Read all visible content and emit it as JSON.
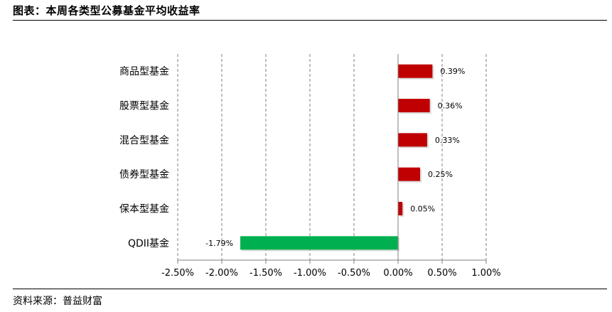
{
  "header": {
    "title": "图表：本周各类型公募基金平均收益率"
  },
  "footer": {
    "source": "资料来源：普益财富"
  },
  "chart_data": {
    "type": "bar",
    "orientation": "horizontal",
    "categories": [
      "商品型基金",
      "股票型基金",
      "混合型基金",
      "债券型基金",
      "保本型基金",
      "QDII基金"
    ],
    "values": [
      0.39,
      0.36,
      0.33,
      0.25,
      0.05,
      -1.79
    ],
    "data_labels": [
      "0.39%",
      "0.36%",
      "0.33%",
      "0.25%",
      "0.05%",
      "-1.79%"
    ],
    "xlim": [
      -2.5,
      1.0
    ],
    "xticks": [
      -2.5,
      -2.0,
      -1.5,
      -1.0,
      -0.5,
      0.0,
      0.5,
      1.0
    ],
    "xtick_labels": [
      "-2.50%",
      "-2.00%",
      "-1.50%",
      "-1.00%",
      "-0.50%",
      "0.00%",
      "0.50%",
      "1.00%"
    ],
    "grid": "vertical dashed",
    "colors": {
      "positive": "#c00000",
      "negative": "#00b050",
      "grid": "#7f7f7f",
      "axis": "#7f7f7f"
    }
  }
}
